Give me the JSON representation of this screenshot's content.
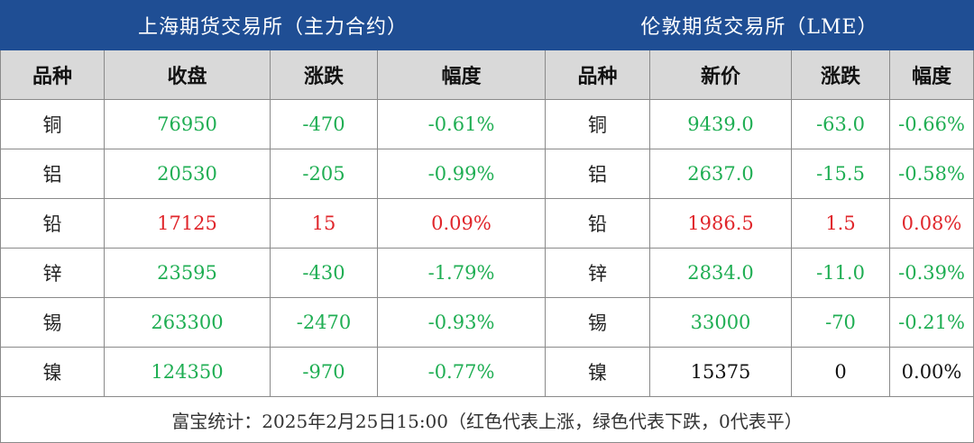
{
  "colors": {
    "header_bg": "#1f4e94",
    "subheader_bg": "#d9d9d9",
    "down": "#1fae53",
    "up": "#e0262b",
    "flat": "#111111"
  },
  "shfe": {
    "title": "上海期货交易所（主力合约）",
    "columns": [
      "品种",
      "收盘",
      "涨跌",
      "幅度"
    ]
  },
  "lme": {
    "title": "伦敦期货交易所（LME）",
    "columns": [
      "品种",
      "新价",
      "涨跌",
      "幅度"
    ]
  },
  "rows": [
    {
      "metal": "铜",
      "shfe": {
        "close": "76950",
        "change": "-470",
        "pct": "-0.61%",
        "trend": "down"
      },
      "lme": {
        "price": "9439.0",
        "change": "-63.0",
        "pct": "-0.66%",
        "trend": "down"
      }
    },
    {
      "metal": "铝",
      "shfe": {
        "close": "20530",
        "change": "-205",
        "pct": "-0.99%",
        "trend": "down"
      },
      "lme": {
        "price": "2637.0",
        "change": "-15.5",
        "pct": "-0.58%",
        "trend": "down"
      }
    },
    {
      "metal": "铅",
      "shfe": {
        "close": "17125",
        "change": "15",
        "pct": "0.09%",
        "trend": "up"
      },
      "lme": {
        "price": "1986.5",
        "change": "1.5",
        "pct": "0.08%",
        "trend": "up"
      }
    },
    {
      "metal": "锌",
      "shfe": {
        "close": "23595",
        "change": "-430",
        "pct": "-1.79%",
        "trend": "down"
      },
      "lme": {
        "price": "2834.0",
        "change": "-11.0",
        "pct": "-0.39%",
        "trend": "down"
      }
    },
    {
      "metal": "锡",
      "shfe": {
        "close": "263300",
        "change": "-2470",
        "pct": "-0.93%",
        "trend": "down"
      },
      "lme": {
        "price": "33000",
        "change": "-70",
        "pct": "-0.21%",
        "trend": "down"
      }
    },
    {
      "metal": "镍",
      "shfe": {
        "close": "124350",
        "change": "-970",
        "pct": "-0.77%",
        "trend": "down"
      },
      "lme": {
        "price": "15375",
        "change": "0",
        "pct": "0.00%",
        "trend": "flat"
      }
    }
  ],
  "footer": "富宝统计：2025年2月25日15:00（红色代表上涨，绿色代表下跌，0代表平）"
}
